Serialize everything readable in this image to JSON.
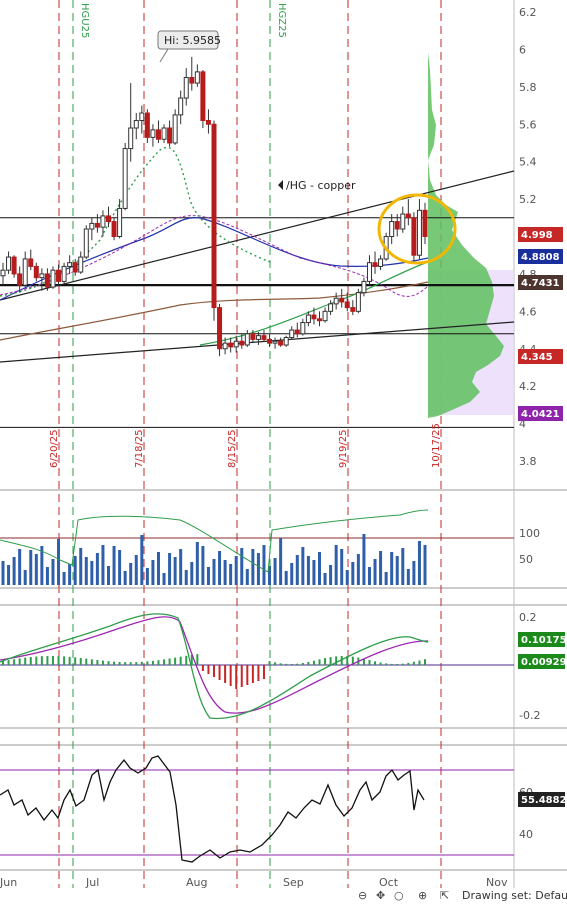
{
  "chart_data": [
    {
      "type": "candlestick",
      "symbol_label": "/HG - copper",
      "high_label": "Hi: 5.9585",
      "y_ticks": [
        "6.2",
        "6",
        "5.8",
        "5.6",
        "5.4",
        "5.2",
        "5",
        "4.8",
        "4.6",
        "4.4",
        "4.2",
        "4",
        "3.8"
      ],
      "ylim": [
        3.65,
        6.25
      ],
      "price_badges": [
        {
          "value": "4.998",
          "color": "#c62828"
        },
        {
          "value": "4.8808",
          "color": "#1a2f9c"
        },
        {
          "value": "4.7431",
          "color": "#4e342e"
        },
        {
          "value": "4.345",
          "color": "#c62828"
        },
        {
          "value": "4.0421",
          "color": "#8e24aa"
        }
      ],
      "contract_markers": [
        "HGU25",
        "HGZ25"
      ],
      "date_markers": [
        "6/20/25",
        "7/18/25",
        "8/15/25",
        "9/19/25",
        "10/17/25"
      ],
      "horizontal_levels": [
        5.1,
        4.74,
        4.48,
        3.98
      ],
      "candles": [
        {
          "o": 4.79,
          "h": 4.86,
          "l": 4.74,
          "c": 4.82
        },
        {
          "o": 4.82,
          "h": 4.92,
          "l": 4.8,
          "c": 4.89
        },
        {
          "o": 4.89,
          "h": 4.9,
          "l": 4.78,
          "c": 4.8
        },
        {
          "o": 4.8,
          "h": 4.84,
          "l": 4.7,
          "c": 4.74
        },
        {
          "o": 4.74,
          "h": 4.92,
          "l": 4.73,
          "c": 4.88
        },
        {
          "o": 4.88,
          "h": 4.93,
          "l": 4.82,
          "c": 4.84
        },
        {
          "o": 4.84,
          "h": 4.86,
          "l": 4.76,
          "c": 4.78
        },
        {
          "o": 4.78,
          "h": 4.83,
          "l": 4.71,
          "c": 4.8
        },
        {
          "o": 4.8,
          "h": 4.83,
          "l": 4.71,
          "c": 4.73
        },
        {
          "o": 4.73,
          "h": 4.84,
          "l": 4.72,
          "c": 4.82
        },
        {
          "o": 4.82,
          "h": 4.85,
          "l": 4.74,
          "c": 4.76
        },
        {
          "o": 4.76,
          "h": 4.86,
          "l": 4.75,
          "c": 4.84
        },
        {
          "o": 4.84,
          "h": 4.9,
          "l": 4.8,
          "c": 4.86
        },
        {
          "o": 4.86,
          "h": 4.88,
          "l": 4.79,
          "c": 4.81
        },
        {
          "o": 4.81,
          "h": 4.92,
          "l": 4.8,
          "c": 4.89
        },
        {
          "o": 4.89,
          "h": 5.06,
          "l": 4.88,
          "c": 5.04
        },
        {
          "o": 5.04,
          "h": 5.1,
          "l": 4.98,
          "c": 5.07
        },
        {
          "o": 5.07,
          "h": 5.12,
          "l": 5.02,
          "c": 5.05
        },
        {
          "o": 5.05,
          "h": 5.14,
          "l": 5.0,
          "c": 5.11
        },
        {
          "o": 5.11,
          "h": 5.16,
          "l": 5.05,
          "c": 5.08
        },
        {
          "o": 5.08,
          "h": 5.1,
          "l": 4.98,
          "c": 5.0
        },
        {
          "o": 5.0,
          "h": 5.2,
          "l": 4.99,
          "c": 5.15
        },
        {
          "o": 5.15,
          "h": 5.5,
          "l": 5.14,
          "c": 5.47
        },
        {
          "o": 5.47,
          "h": 5.82,
          "l": 5.4,
          "c": 5.58
        },
        {
          "o": 5.58,
          "h": 5.66,
          "l": 5.52,
          "c": 5.62
        },
        {
          "o": 5.62,
          "h": 5.7,
          "l": 5.55,
          "c": 5.66
        },
        {
          "o": 5.66,
          "h": 5.68,
          "l": 5.5,
          "c": 5.53
        },
        {
          "o": 5.53,
          "h": 5.6,
          "l": 5.48,
          "c": 5.57
        },
        {
          "o": 5.57,
          "h": 5.62,
          "l": 5.5,
          "c": 5.52
        },
        {
          "o": 5.52,
          "h": 5.6,
          "l": 5.5,
          "c": 5.58
        },
        {
          "o": 5.58,
          "h": 5.62,
          "l": 5.48,
          "c": 5.5
        },
        {
          "o": 5.5,
          "h": 5.68,
          "l": 5.49,
          "c": 5.65
        },
        {
          "o": 5.65,
          "h": 5.78,
          "l": 5.6,
          "c": 5.74
        },
        {
          "o": 5.74,
          "h": 5.9,
          "l": 5.7,
          "c": 5.85
        },
        {
          "o": 5.85,
          "h": 5.96,
          "l": 5.78,
          "c": 5.82
        },
        {
          "o": 5.82,
          "h": 5.92,
          "l": 5.8,
          "c": 5.88
        },
        {
          "o": 5.88,
          "h": 5.89,
          "l": 5.58,
          "c": 5.62
        },
        {
          "o": 5.62,
          "h": 5.68,
          "l": 5.55,
          "c": 5.6
        },
        {
          "o": 5.6,
          "h": 5.62,
          "l": 4.55,
          "c": 4.62
        },
        {
          "o": 4.62,
          "h": 4.64,
          "l": 4.36,
          "c": 4.4
        },
        {
          "o": 4.4,
          "h": 4.46,
          "l": 4.37,
          "c": 4.43
        },
        {
          "o": 4.43,
          "h": 4.46,
          "l": 4.38,
          "c": 4.41
        },
        {
          "o": 4.41,
          "h": 4.47,
          "l": 4.38,
          "c": 4.44
        },
        {
          "o": 4.44,
          "h": 4.48,
          "l": 4.4,
          "c": 4.42
        },
        {
          "o": 4.42,
          "h": 4.5,
          "l": 4.41,
          "c": 4.48
        },
        {
          "o": 4.48,
          "h": 4.5,
          "l": 4.43,
          "c": 4.45
        },
        {
          "o": 4.45,
          "h": 4.49,
          "l": 4.42,
          "c": 4.47
        },
        {
          "o": 4.47,
          "h": 4.5,
          "l": 4.44,
          "c": 4.45
        },
        {
          "o": 4.45,
          "h": 4.48,
          "l": 4.41,
          "c": 4.43
        },
        {
          "o": 4.43,
          "h": 4.46,
          "l": 4.4,
          "c": 4.44
        },
        {
          "o": 4.44,
          "h": 4.46,
          "l": 4.41,
          "c": 4.42
        },
        {
          "o": 4.42,
          "h": 4.47,
          "l": 4.41,
          "c": 4.46
        },
        {
          "o": 4.46,
          "h": 4.52,
          "l": 4.45,
          "c": 4.5
        },
        {
          "o": 4.5,
          "h": 4.54,
          "l": 4.46,
          "c": 4.48
        },
        {
          "o": 4.48,
          "h": 4.56,
          "l": 4.47,
          "c": 4.54
        },
        {
          "o": 4.54,
          "h": 4.6,
          "l": 4.52,
          "c": 4.58
        },
        {
          "o": 4.58,
          "h": 4.62,
          "l": 4.53,
          "c": 4.56
        },
        {
          "o": 4.56,
          "h": 4.6,
          "l": 4.52,
          "c": 4.55
        },
        {
          "o": 4.55,
          "h": 4.62,
          "l": 4.54,
          "c": 4.6
        },
        {
          "o": 4.6,
          "h": 4.66,
          "l": 4.58,
          "c": 4.64
        },
        {
          "o": 4.64,
          "h": 4.7,
          "l": 4.61,
          "c": 4.67
        },
        {
          "o": 4.67,
          "h": 4.72,
          "l": 4.62,
          "c": 4.65
        },
        {
          "o": 4.65,
          "h": 4.7,
          "l": 4.6,
          "c": 4.62
        },
        {
          "o": 4.62,
          "h": 4.66,
          "l": 4.58,
          "c": 4.6
        },
        {
          "o": 4.6,
          "h": 4.72,
          "l": 4.59,
          "c": 4.7
        },
        {
          "o": 4.7,
          "h": 4.78,
          "l": 4.68,
          "c": 4.76
        },
        {
          "o": 4.76,
          "h": 4.9,
          "l": 4.74,
          "c": 4.86
        },
        {
          "o": 4.86,
          "h": 4.92,
          "l": 4.8,
          "c": 4.84
        },
        {
          "o": 4.84,
          "h": 4.9,
          "l": 4.82,
          "c": 4.88
        },
        {
          "o": 4.88,
          "h": 5.02,
          "l": 4.87,
          "c": 5.0
        },
        {
          "o": 5.0,
          "h": 5.12,
          "l": 4.96,
          "c": 5.08
        },
        {
          "o": 5.08,
          "h": 5.12,
          "l": 5.0,
          "c": 5.04
        },
        {
          "o": 5.04,
          "h": 5.16,
          "l": 5.02,
          "c": 5.12
        },
        {
          "o": 5.12,
          "h": 5.2,
          "l": 5.06,
          "c": 5.1
        },
        {
          "o": 5.1,
          "h": 5.13,
          "l": 4.86,
          "c": 4.9
        },
        {
          "o": 4.9,
          "h": 5.2,
          "l": 4.88,
          "c": 5.14
        },
        {
          "o": 5.14,
          "h": 5.18,
          "l": 4.96,
          "c": 5.0
        }
      ]
    },
    {
      "type": "line",
      "name": "volume_panel",
      "y_ticks": [
        "100",
        "50"
      ],
      "ylim": [
        0,
        180
      ]
    },
    {
      "type": "line",
      "name": "macd_panel",
      "y_ticks": [
        "0.2",
        "0",
        "-0.2"
      ],
      "ylim": [
        -0.25,
        0.25
      ],
      "badges": [
        {
          "value": "0.10175",
          "color": "#1b8a1b"
        },
        {
          "value": "0.00929",
          "color": "#1b8a1b"
        }
      ]
    },
    {
      "type": "line",
      "name": "rsi_panel",
      "y_ticks": [
        "60",
        "40"
      ],
      "ylim": [
        18,
        88
      ],
      "levels": [
        70,
        30
      ],
      "badge": {
        "value": "55.4882",
        "color": "#222222"
      }
    }
  ],
  "x_axis": {
    "labels": [
      "Jun",
      "Jul",
      "Aug",
      "Sep",
      "Oct",
      "Nov"
    ]
  },
  "footer": {
    "drawing_set": "Drawing set: Default"
  }
}
